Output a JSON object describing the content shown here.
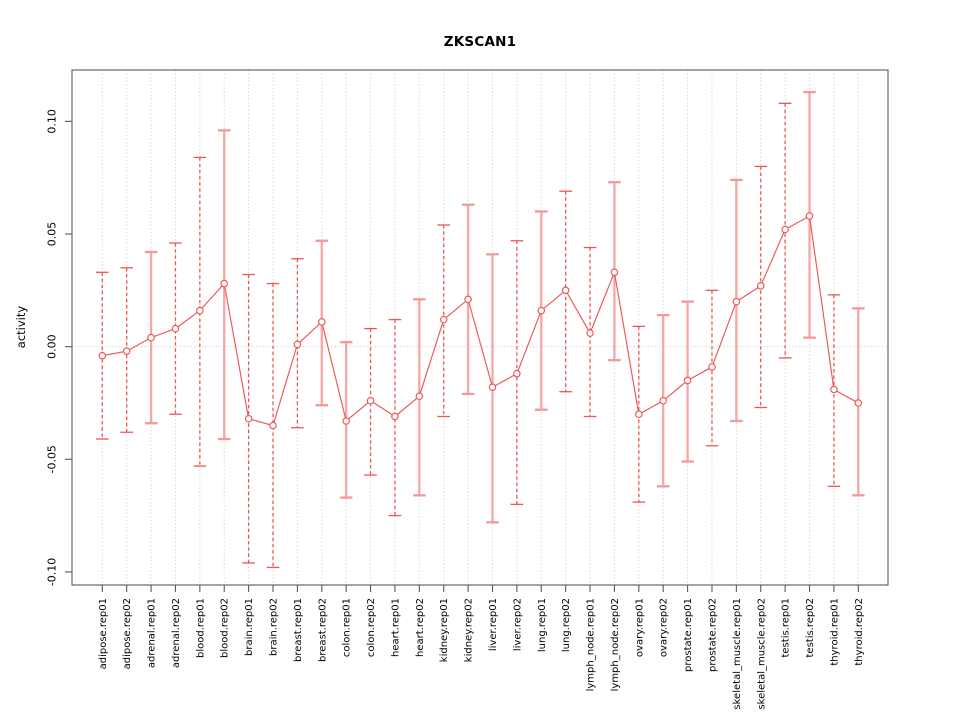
{
  "title": "ZKSCAN1",
  "chart_data": {
    "type": "scatter",
    "subtype": "points-with-error-bars-connected-line",
    "title": "ZKSCAN1",
    "xlabel": "",
    "ylabel": "activity",
    "ylim": [
      -0.1058,
      0.1228
    ],
    "yticks": [
      0.1,
      0.05,
      0.0,
      -0.05,
      -0.1
    ],
    "ytick_labels": [
      "0.10",
      "0.05",
      "0.00",
      "-0.05",
      "-0.10"
    ],
    "grid": "vertical dotted gridline at every category; dotted horizontal line at y=0",
    "legend_position": "none",
    "categories": [
      "adipose.rep01",
      "adipose.rep02",
      "adrenal.rep01",
      "adrenal.rep02",
      "blood.rep01",
      "blood.rep02",
      "brain.rep01",
      "brain.rep02",
      "breast.rep01",
      "breast.rep02",
      "colon.rep01",
      "colon.rep02",
      "heart.rep01",
      "heart.rep02",
      "kidney.rep01",
      "kidney.rep02",
      "liver.rep01",
      "liver.rep02",
      "lung.rep01",
      "lung.rep02",
      "lymph_node.rep01",
      "lymph_node.rep02",
      "ovary.rep01",
      "ovary.rep02",
      "prostate.rep01",
      "prostate.rep02",
      "skeletal_muscle.rep01",
      "skeletal_muscle.rep02",
      "testis.rep01",
      "testis.rep02",
      "thyroid.rep01",
      "thyroid.rep02"
    ],
    "series": [
      {
        "name": "activity (mean)",
        "values": [
          -0.004,
          -0.002,
          0.004,
          0.008,
          0.016,
          0.028,
          -0.032,
          -0.035,
          0.001,
          0.011,
          -0.033,
          -0.024,
          -0.031,
          -0.022,
          0.012,
          0.021,
          -0.018,
          -0.012,
          0.016,
          0.025,
          0.006,
          0.033,
          -0.03,
          -0.024,
          -0.015,
          -0.009,
          0.02,
          0.027,
          0.052,
          0.058,
          -0.019,
          -0.025
        ]
      },
      {
        "name": "upper error bound",
        "values": [
          0.033,
          0.035,
          0.042,
          0.046,
          0.084,
          0.096,
          0.032,
          0.028,
          0.039,
          0.047,
          0.002,
          0.008,
          0.012,
          0.021,
          0.054,
          0.063,
          0.041,
          0.047,
          0.06,
          0.069,
          0.044,
          0.073,
          0.009,
          0.014,
          0.02,
          0.025,
          0.074,
          0.08,
          0.108,
          0.113,
          0.023,
          0.017
        ]
      },
      {
        "name": "lower error bound",
        "values": [
          -0.041,
          -0.038,
          -0.034,
          -0.03,
          -0.053,
          -0.041,
          -0.096,
          -0.098,
          -0.036,
          -0.026,
          -0.067,
          -0.057,
          -0.075,
          -0.066,
          -0.031,
          -0.021,
          -0.078,
          -0.07,
          -0.028,
          -0.02,
          -0.031,
          -0.006,
          -0.069,
          -0.062,
          -0.051,
          -0.044,
          -0.033,
          -0.027,
          -0.005,
          0.004,
          -0.062,
          -0.066
        ]
      }
    ],
    "bar_styles": [
      "dashed",
      "dashed",
      "solid",
      "dashed",
      "dashed",
      "solid",
      "dashed",
      "dashed",
      "dashed",
      "solid",
      "solid",
      "dashed",
      "dashed",
      "solid",
      "dashed",
      "solid",
      "solid",
      "dashed",
      "solid",
      "dashed",
      "dashed",
      "solid",
      "dashed",
      "solid",
      "solid",
      "dashed",
      "solid",
      "dashed",
      "dashed",
      "solid",
      "dashed",
      "solid"
    ],
    "colors": {
      "point": "#ee5555",
      "series_line": "#ee5555",
      "error_bar_dashed": "#ee5555",
      "error_bar_solid": "#f7a5a5",
      "error_bar_solid_cap": "#f49898",
      "gridline": "#cfcfcf",
      "frame": "#5a5a5a",
      "tick_text": "#000000"
    }
  }
}
